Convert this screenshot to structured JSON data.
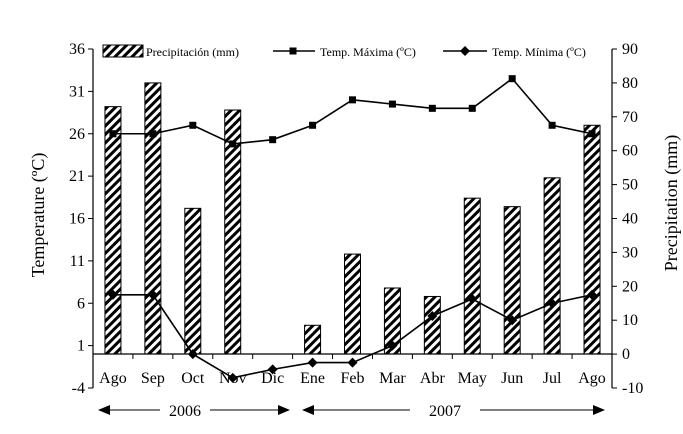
{
  "chart_data": {
    "type": "bar+line",
    "categories": [
      "Ago",
      "Sep",
      "Oct",
      "Nov",
      "Dic",
      "Ene",
      "Feb",
      "Mar",
      "Abr",
      "May",
      "Jun",
      "Jul",
      "Ago"
    ],
    "series": [
      {
        "name": "Precipitación (mm)",
        "kind": "bar",
        "axis": "right",
        "values": [
          73,
          80,
          43,
          72,
          0,
          8.5,
          29.5,
          19.5,
          17,
          46,
          43.5,
          52,
          67.5
        ]
      },
      {
        "name": "Temp. Máxima (ºC)",
        "kind": "line",
        "marker": "square",
        "axis": "left",
        "values": [
          26,
          26,
          27,
          24.8,
          25.3,
          27,
          30,
          29.5,
          29,
          29,
          32.5,
          27,
          26
        ]
      },
      {
        "name": "Temp. Mínima (ºC)",
        "kind": "line",
        "marker": "diamond",
        "axis": "left",
        "values": [
          7,
          7,
          0,
          -2.8,
          -1.8,
          -1,
          -1,
          1,
          4.5,
          6.5,
          4,
          6,
          7
        ]
      }
    ],
    "ylabel_left": "Temperature (ºC)",
    "ylabel_right": "Precipitation (mm)",
    "ylim_left": [
      -4,
      36
    ],
    "yticks_left": [
      "36",
      "31",
      "26",
      "21",
      "16",
      "11",
      "6",
      "1",
      "-4"
    ],
    "ylim_right": [
      -10,
      90
    ],
    "yticks_right": [
      "90",
      "80",
      "70",
      "60",
      "50",
      "40",
      "30",
      "20",
      "10",
      "0",
      "-10"
    ],
    "years": [
      {
        "label": "2006",
        "from": "Ago",
        "to": "Dic"
      },
      {
        "label": "2007",
        "from": "Ene",
        "to": "Ago"
      }
    ],
    "legend_position": "top",
    "grid": false
  }
}
